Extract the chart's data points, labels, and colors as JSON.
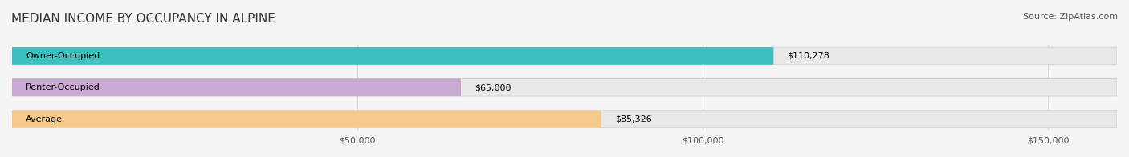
{
  "title": "MEDIAN INCOME BY OCCUPANCY IN ALPINE",
  "source": "Source: ZipAtlas.com",
  "categories": [
    "Owner-Occupied",
    "Renter-Occupied",
    "Average"
  ],
  "values": [
    110278,
    65000,
    85326
  ],
  "labels": [
    "$110,278",
    "$65,000",
    "$85,326"
  ],
  "bar_colors": [
    "#3bbfbf",
    "#c9a8d4",
    "#f5c98a"
  ],
  "bar_bg_color": "#e8e8e8",
  "bar_edge_color": "#cccccc",
  "xlim": [
    0,
    160000
  ],
  "xticks": [
    0,
    50000,
    100000,
    150000
  ],
  "xtick_labels": [
    "",
    "$50,000",
    "$100,000",
    "$150,000"
  ],
  "title_fontsize": 11,
  "label_fontsize": 8,
  "tick_fontsize": 8,
  "source_fontsize": 8,
  "background_color": "#f5f5f5",
  "bar_height": 0.55,
  "fig_width": 14.06,
  "fig_height": 1.96
}
